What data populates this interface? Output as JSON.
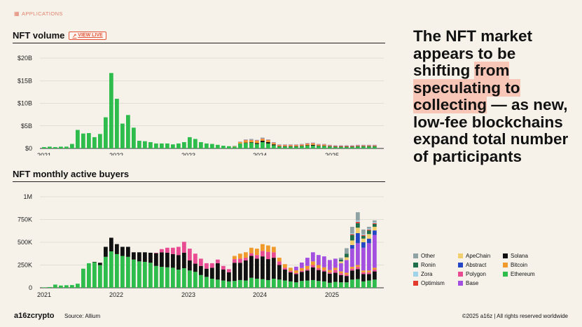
{
  "section": "APPLICATIONS",
  "view_live": "VIEW LIVE",
  "headline": {
    "part1": "The NFT market appears to be shifting ",
    "highlight": "from speculating to collecting",
    "part2": " — as new, low-fee blockchains expand total number of participants"
  },
  "footer": {
    "logo": "a16zcrypto",
    "source": "Source: Allium",
    "copyright": "©2025 a16z | All rights reserved worldwide"
  },
  "colors": {
    "Other": "#8fa3a4",
    "Ronin": "#1f6e4a",
    "Zora": "#9fd3ea",
    "Optimism": "#e23b2e",
    "ApeChain": "#f2cf6e",
    "Abstract": "#2346c4",
    "Polygon": "#e84b92",
    "Base": "#a34fe0",
    "Solana": "#111111",
    "Bitcoin": "#f09a2c",
    "Ethereum": "#2ebd4c"
  },
  "legend": [
    "Other",
    "ApeChain",
    "Solana",
    "Ronin",
    "Abstract",
    "Bitcoin",
    "Zora",
    "Polygon",
    "Ethereum",
    "Optimism",
    "Base"
  ],
  "chart_data": [
    {
      "type": "bar",
      "title": "NFT volume",
      "x_ticks": [
        "2021",
        "2022",
        "2023",
        "2024",
        "2025"
      ],
      "y_ticks": [
        "$0",
        "$5B",
        "$10B",
        "$15B",
        "$20B"
      ],
      "ylim": [
        0,
        20
      ],
      "unit": "B USD",
      "series": [
        {
          "name": "Ethereum",
          "values": [
            0.3,
            0.4,
            0.3,
            0.4,
            0.4,
            1.0,
            4.1,
            3.3,
            3.4,
            2.5,
            3.2,
            6.9,
            16.7,
            11.0,
            5.5,
            7.4,
            4.6,
            1.7,
            1.6,
            1.4,
            1.1,
            1.1,
            1.1,
            0.9,
            1.1,
            1.4,
            2.5,
            2.1,
            1.4,
            1.1,
            1.0,
            0.8,
            0.6,
            0.5,
            0.4,
            1.1,
            1.2,
            1.3,
            1.0,
            1.4,
            1.1,
            0.7,
            0.4,
            0.4,
            0.4,
            0.4,
            0.5,
            0.6,
            0.6,
            0.5,
            0.5,
            0.4,
            0.3,
            0.3,
            0.3,
            0.3,
            0.4,
            0.4,
            0.4,
            0.4
          ]
        },
        {
          "name": "Solana",
          "values": [
            0,
            0,
            0,
            0,
            0,
            0,
            0,
            0,
            0,
            0,
            0,
            0,
            0,
            0,
            0,
            0,
            0,
            0,
            0,
            0,
            0,
            0,
            0,
            0,
            0,
            0,
            0,
            0,
            0,
            0,
            0,
            0,
            0,
            0,
            0,
            0,
            0.1,
            0.1,
            0.2,
            0.3,
            0.3,
            0.2,
            0.1,
            0.1,
            0.1,
            0.1,
            0.1,
            0.1,
            0.2,
            0.1,
            0.1,
            0.1,
            0.1,
            0.1,
            0.1,
            0.1,
            0.1,
            0.1,
            0.1,
            0.1
          ]
        },
        {
          "name": "Bitcoin",
          "values": [
            0,
            0,
            0,
            0,
            0,
            0,
            0,
            0,
            0,
            0,
            0,
            0,
            0,
            0,
            0,
            0,
            0,
            0,
            0,
            0,
            0,
            0,
            0,
            0,
            0,
            0,
            0,
            0,
            0,
            0,
            0,
            0,
            0,
            0,
            0.1,
            0.3,
            0.5,
            0.4,
            0.5,
            0.4,
            0.4,
            0.3,
            0.2,
            0.2,
            0.2,
            0.2,
            0.2,
            0.3,
            0.3,
            0.2,
            0.2,
            0.1,
            0.1,
            0.1,
            0.1,
            0.1,
            0.1,
            0.1,
            0.1,
            0.1
          ]
        },
        {
          "name": "Polygon",
          "values": [
            0,
            0,
            0,
            0,
            0,
            0,
            0,
            0,
            0,
            0,
            0,
            0,
            0,
            0,
            0,
            0,
            0,
            0,
            0,
            0,
            0,
            0,
            0,
            0,
            0,
            0,
            0,
            0,
            0,
            0,
            0,
            0,
            0,
            0,
            0,
            0,
            0.1,
            0.1,
            0.1,
            0.1,
            0.1,
            0.1,
            0.1,
            0.1,
            0.1,
            0.1,
            0.1,
            0.1,
            0.1,
            0.1,
            0.1,
            0.1,
            0.1,
            0.1,
            0.1,
            0.1,
            0.1,
            0.1,
            0.1,
            0.1
          ]
        },
        {
          "name": "Other",
          "values": [
            0,
            0,
            0,
            0,
            0,
            0,
            0,
            0,
            0,
            0,
            0,
            0,
            0,
            0,
            0,
            0,
            0,
            0,
            0,
            0,
            0,
            0,
            0,
            0,
            0,
            0,
            0,
            0,
            0,
            0,
            0,
            0,
            0,
            0,
            0.1,
            0.1,
            0.1,
            0.2,
            0.1,
            0.2,
            0.1,
            0.1,
            0.1,
            0.1,
            0.1,
            0.1,
            0.1,
            0.1,
            0.1,
            0.1,
            0.1,
            0.1,
            0.1,
            0.1,
            0.1,
            0.1,
            0.1,
            0.1,
            0.1,
            0.1
          ]
        }
      ]
    },
    {
      "type": "bar",
      "title": "NFT monthly active buyers",
      "x_ticks": [
        "2021",
        "2022",
        "2023",
        "2024",
        "2025"
      ],
      "y_ticks": [
        "0",
        "250K",
        "500K",
        "750K",
        "1M"
      ],
      "ylim": [
        0,
        1000
      ],
      "unit": "thousand buyers",
      "series": [
        {
          "name": "Ethereum",
          "values": [
            5,
            8,
            35,
            25,
            28,
            30,
            45,
            210,
            270,
            280,
            250,
            340,
            400,
            370,
            350,
            340,
            310,
            290,
            285,
            275,
            240,
            230,
            225,
            220,
            200,
            215,
            190,
            175,
            140,
            120,
            100,
            90,
            80,
            70,
            75,
            85,
            80,
            110,
            100,
            95,
            85,
            100,
            90,
            80,
            70,
            60,
            75,
            80,
            85,
            75,
            70,
            55,
            65,
            60,
            60,
            90,
            95,
            70,
            80,
            90
          ]
        },
        {
          "name": "Solana",
          "values": [
            0,
            0,
            0,
            0,
            0,
            0,
            0,
            0,
            0,
            5,
            25,
            110,
            150,
            110,
            100,
            110,
            80,
            100,
            105,
            110,
            140,
            160,
            160,
            150,
            160,
            170,
            110,
            90,
            100,
            90,
            120,
            180,
            120,
            100,
            200,
            190,
            220,
            240,
            220,
            250,
            230,
            230,
            160,
            120,
            100,
            90,
            100,
            110,
            140,
            120,
            110,
            100,
            100,
            80,
            70,
            100,
            110,
            80,
            70,
            90
          ]
        },
        {
          "name": "Polygon",
          "values": [
            0,
            0,
            0,
            0,
            0,
            0,
            0,
            0,
            0,
            0,
            0,
            0,
            0,
            0,
            0,
            0,
            0,
            0,
            0,
            0,
            5,
            35,
            55,
            70,
            90,
            120,
            130,
            110,
            80,
            60,
            50,
            40,
            40,
            35,
            40,
            45,
            30,
            30,
            40,
            60,
            80,
            60,
            40,
            20,
            15,
            12,
            12,
            15,
            25,
            20,
            15,
            15,
            30,
            20,
            15,
            20,
            25,
            20,
            20,
            20
          ]
        },
        {
          "name": "Bitcoin",
          "values": [
            0,
            0,
            0,
            0,
            0,
            0,
            0,
            0,
            0,
            0,
            0,
            0,
            0,
            0,
            0,
            0,
            0,
            0,
            0,
            0,
            0,
            0,
            0,
            0,
            0,
            0,
            0,
            0,
            0,
            0,
            0,
            0,
            0,
            0,
            35,
            55,
            60,
            60,
            70,
            75,
            70,
            60,
            40,
            40,
            35,
            30,
            30,
            35,
            40,
            35,
            30,
            25,
            25,
            20,
            20,
            20,
            20,
            20,
            20,
            20
          ]
        },
        {
          "name": "Base",
          "values": [
            0,
            0,
            0,
            0,
            0,
            0,
            0,
            0,
            0,
            0,
            0,
            0,
            0,
            0,
            0,
            0,
            0,
            0,
            0,
            0,
            0,
            0,
            0,
            0,
            0,
            0,
            0,
            0,
            0,
            0,
            0,
            0,
            0,
            0,
            0,
            0,
            0,
            0,
            0,
            0,
            0,
            0,
            0,
            0,
            0,
            40,
            60,
            90,
            100,
            110,
            120,
            110,
            100,
            90,
            140,
            200,
            240,
            250,
            300,
            360
          ]
        },
        {
          "name": "Abstract",
          "values": [
            0,
            0,
            0,
            0,
            0,
            0,
            0,
            0,
            0,
            0,
            0,
            0,
            0,
            0,
            0,
            0,
            0,
            0,
            0,
            0,
            0,
            0,
            0,
            0,
            0,
            0,
            0,
            0,
            0,
            0,
            0,
            0,
            0,
            0,
            0,
            0,
            0,
            0,
            0,
            0,
            0,
            0,
            0,
            0,
            0,
            0,
            0,
            0,
            0,
            0,
            0,
            0,
            0,
            0,
            0,
            40,
            110,
            60,
            50,
            50
          ]
        },
        {
          "name": "ApeChain",
          "values": [
            0,
            0,
            0,
            0,
            0,
            0,
            0,
            0,
            0,
            0,
            0,
            0,
            0,
            0,
            0,
            0,
            0,
            0,
            0,
            0,
            0,
            0,
            0,
            0,
            0,
            0,
            0,
            0,
            0,
            0,
            0,
            0,
            0,
            0,
            0,
            0,
            0,
            0,
            0,
            0,
            0,
            0,
            0,
            0,
            0,
            0,
            0,
            0,
            0,
            0,
            0,
            0,
            0,
            20,
            30,
            50,
            60,
            40,
            50,
            40
          ]
        },
        {
          "name": "Ronin",
          "values": [
            0,
            0,
            0,
            0,
            0,
            0,
            0,
            0,
            0,
            0,
            0,
            0,
            0,
            0,
            0,
            0,
            0,
            0,
            0,
            0,
            0,
            0,
            0,
            0,
            0,
            0,
            0,
            0,
            0,
            0,
            0,
            0,
            0,
            0,
            0,
            0,
            0,
            0,
            0,
            0,
            0,
            0,
            0,
            0,
            0,
            0,
            0,
            0,
            0,
            0,
            0,
            0,
            0,
            20,
            40,
            60,
            50,
            30,
            40,
            30
          ]
        },
        {
          "name": "Optimism",
          "values": [
            0,
            0,
            0,
            0,
            0,
            0,
            0,
            0,
            0,
            0,
            0,
            0,
            0,
            0,
            0,
            0,
            0,
            0,
            0,
            0,
            0,
            0,
            0,
            0,
            0,
            0,
            0,
            0,
            0,
            0,
            0,
            0,
            0,
            0,
            0,
            0,
            0,
            0,
            0,
            0,
            0,
            0,
            0,
            0,
            0,
            0,
            0,
            0,
            0,
            0,
            0,
            0,
            0,
            0,
            0,
            10,
            15,
            10,
            10,
            10
          ]
        },
        {
          "name": "Zora",
          "values": [
            0,
            0,
            0,
            0,
            0,
            0,
            0,
            0,
            0,
            0,
            0,
            0,
            0,
            0,
            0,
            0,
            0,
            0,
            0,
            0,
            0,
            0,
            0,
            0,
            0,
            0,
            0,
            0,
            0,
            0,
            0,
            0,
            0,
            0,
            0,
            0,
            0,
            0,
            0,
            0,
            0,
            0,
            0,
            0,
            0,
            0,
            0,
            0,
            0,
            0,
            0,
            0,
            0,
            0,
            0,
            10,
            15,
            10,
            10,
            10
          ]
        },
        {
          "name": "Other",
          "values": [
            0,
            0,
            0,
            0,
            0,
            0,
            0,
            0,
            0,
            0,
            0,
            0,
            0,
            0,
            0,
            0,
            0,
            0,
            0,
            0,
            0,
            0,
            0,
            0,
            0,
            0,
            0,
            0,
            0,
            0,
            0,
            0,
            0,
            0,
            0,
            0,
            0,
            0,
            0,
            0,
            0,
            0,
            0,
            0,
            0,
            0,
            0,
            0,
            0,
            0,
            0,
            0,
            0,
            20,
            60,
            70,
            90,
            50,
            20,
            20
          ]
        }
      ]
    }
  ]
}
